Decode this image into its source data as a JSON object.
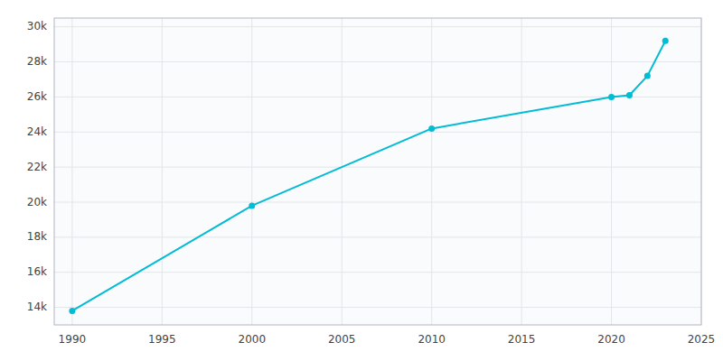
{
  "chart_data": {
    "type": "line",
    "x": [
      1990,
      2000,
      2010,
      2020,
      2021,
      2022,
      2023
    ],
    "values": [
      13800,
      19800,
      24200,
      26000,
      26100,
      27200,
      29200
    ],
    "color": "#00bcd4",
    "marker": "circle",
    "xlim": [
      1989,
      2025
    ],
    "ylim": [
      13000,
      30500
    ],
    "xticks": [
      1990,
      1995,
      2000,
      2005,
      2010,
      2015,
      2020,
      2025
    ],
    "yticks": [
      {
        "value": 14000,
        "label": "14k"
      },
      {
        "value": 16000,
        "label": "16k"
      },
      {
        "value": 18000,
        "label": "18k"
      },
      {
        "value": 20000,
        "label": "20k"
      },
      {
        "value": 22000,
        "label": "22k"
      },
      {
        "value": 24000,
        "label": "24k"
      },
      {
        "value": 26000,
        "label": "26k"
      },
      {
        "value": 28000,
        "label": "28k"
      },
      {
        "value": 30000,
        "label": "30k"
      }
    ],
    "grid": true
  }
}
